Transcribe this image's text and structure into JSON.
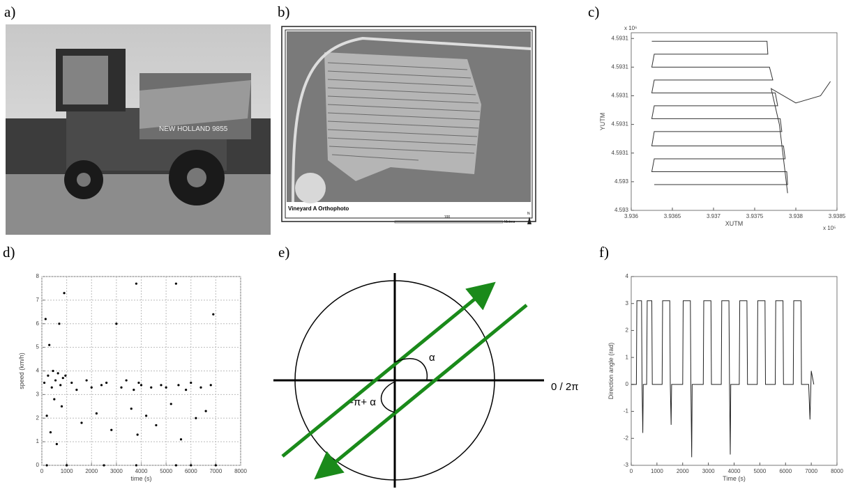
{
  "panel_labels": [
    "a)",
    "b)",
    "c)",
    "d)",
    "e)",
    "f)"
  ],
  "photo": {
    "text": "NEW HOLLAND 9855"
  },
  "orthophoto": {
    "title": "Vineyard A Orthophoto",
    "scale_label": "100",
    "scale_unit": "Metres",
    "north": "N"
  },
  "diagram": {
    "alpha": "α",
    "neg_label": "-π+ α",
    "right_label": "0 / 2π"
  },
  "chart_data": [
    {
      "type": "line",
      "x_label": "XUTM",
      "y_label": "YUTM",
      "x_offset_label": "x 10⁵",
      "y_offset_label": "x 10⁶",
      "color": "#333333",
      "grid": false,
      "xlim": [
        3.936,
        3.9385
      ],
      "xticks": [
        3.936,
        3.9365,
        3.937,
        3.9375,
        3.938,
        3.9385
      ],
      "ylim": [
        4.593,
        4.593124
      ],
      "yticks": [
        {
          "value": 4.593,
          "label": "4.593"
        },
        {
          "value": 4.59302,
          "label": "4.593"
        },
        {
          "value": 4.59304,
          "label": "4.5931"
        },
        {
          "value": 4.59306,
          "label": "4.5931"
        },
        {
          "value": 4.59308,
          "label": "4.5931"
        },
        {
          "value": 4.5931,
          "label": "4.5931"
        },
        {
          "value": 4.59312,
          "label": "4.5931"
        }
      ],
      "x": [
        3.93625,
        3.93765,
        3.93766,
        3.93628,
        3.93625,
        3.93768,
        3.93772,
        3.93628,
        3.93625,
        3.93775,
        3.93778,
        3.93628,
        3.93625,
        3.93781,
        3.93783,
        3.93628,
        3.93625,
        3.93785,
        3.93787,
        3.93628,
        3.93625,
        3.93789,
        3.9379,
        3.93628,
        null,
        3.9379,
        3.9378,
        3.9377,
        3.938,
        3.9383,
        3.93842
      ],
      "values": [
        4.593118,
        4.593118,
        4.593109,
        4.593109,
        4.5931,
        4.5931,
        4.593091,
        4.593091,
        4.593082,
        4.593082,
        4.593073,
        4.593073,
        4.593064,
        4.593064,
        4.593055,
        4.593055,
        4.593045,
        4.593045,
        4.593036,
        4.593036,
        4.593027,
        4.593027,
        4.593018,
        4.593018,
        null,
        4.593012,
        4.59306,
        4.593085,
        4.593075,
        4.59308,
        4.59309
      ]
    },
    {
      "type": "scatter",
      "x_label": "time (s)",
      "y_label": "speed (km/h)",
      "color": "#000000",
      "grid": true,
      "xlim": [
        0,
        8000
      ],
      "xticks": [
        0,
        1000,
        2000,
        3000,
        4000,
        5000,
        6000,
        7000,
        8000
      ],
      "ylim": [
        0,
        8
      ],
      "yticks": [
        0,
        1,
        2,
        3,
        4,
        5,
        6,
        7,
        8
      ],
      "x": [
        100,
        150,
        200,
        250,
        300,
        350,
        400,
        450,
        500,
        550,
        600,
        650,
        700,
        750,
        800,
        850,
        900,
        950,
        1000,
        1200,
        1400,
        1600,
        1800,
        2000,
        2200,
        2400,
        2600,
        2800,
        3000,
        3200,
        3400,
        3600,
        3700,
        3800,
        3850,
        3900,
        4000,
        4200,
        4400,
        4600,
        4800,
        5000,
        5200,
        5400,
        5500,
        5600,
        5800,
        6000,
        6200,
        6400,
        6600,
        6800,
        6900,
        200,
        1000,
        2500,
        3800,
        5400,
        6000,
        7000
      ],
      "values": [
        3.5,
        6.2,
        2.1,
        3.8,
        5.1,
        1.4,
        3.3,
        4.0,
        2.8,
        3.6,
        0.9,
        3.9,
        6.0,
        3.4,
        2.5,
        3.7,
        7.3,
        3.8,
        0,
        3.5,
        3.2,
        1.8,
        3.6,
        3.3,
        2.2,
        3.4,
        3.5,
        1.5,
        6.0,
        3.3,
        3.6,
        2.4,
        3.2,
        7.7,
        1.3,
        3.5,
        3.4,
        2.1,
        3.3,
        1.7,
        3.4,
        3.3,
        2.6,
        7.7,
        3.4,
        1.1,
        3.2,
        3.5,
        2.0,
        3.3,
        2.3,
        3.4,
        6.4,
        0,
        0,
        0,
        0,
        0,
        0,
        0
      ]
    },
    {
      "type": "line",
      "x_label": "Time (s)",
      "y_label": "Direction angle (rad)",
      "color": "#222222",
      "grid": false,
      "xlim": [
        0,
        8000
      ],
      "xticks": [
        0,
        1000,
        2000,
        3000,
        4000,
        5000,
        6000,
        7000,
        8000
      ],
      "ylim": [
        -3,
        4
      ],
      "yticks": [
        -3,
        -2,
        -1,
        0,
        1,
        2,
        3,
        4
      ],
      "x": [
        0,
        200,
        220,
        400,
        420,
        450,
        470,
        600,
        620,
        800,
        820,
        1200,
        1220,
        1500,
        1520,
        1550,
        1570,
        2000,
        2020,
        2300,
        2320,
        2350,
        2370,
        2800,
        2820,
        3100,
        3120,
        3500,
        3520,
        3800,
        3820,
        3850,
        3870,
        4200,
        4220,
        4500,
        4520,
        4900,
        4920,
        5200,
        5220,
        5600,
        5620,
        5900,
        5920,
        6300,
        6320,
        6600,
        6620,
        6900,
        6950,
        7000,
        7100
      ],
      "values": [
        0,
        0,
        3.1,
        3.1,
        0,
        -1.8,
        0,
        0,
        3.1,
        3.1,
        0,
        0,
        3.1,
        3.1,
        0,
        -1.5,
        0,
        0,
        3.1,
        3.1,
        0,
        -2.7,
        0,
        0,
        3.1,
        3.1,
        0,
        0,
        3.1,
        3.1,
        0,
        -2.6,
        0,
        0,
        3.1,
        3.1,
        0,
        0,
        3.1,
        3.1,
        0,
        0,
        3.1,
        3.1,
        0,
        0,
        3.1,
        3.1,
        0,
        0,
        -1.3,
        0.5,
        0
      ]
    }
  ]
}
